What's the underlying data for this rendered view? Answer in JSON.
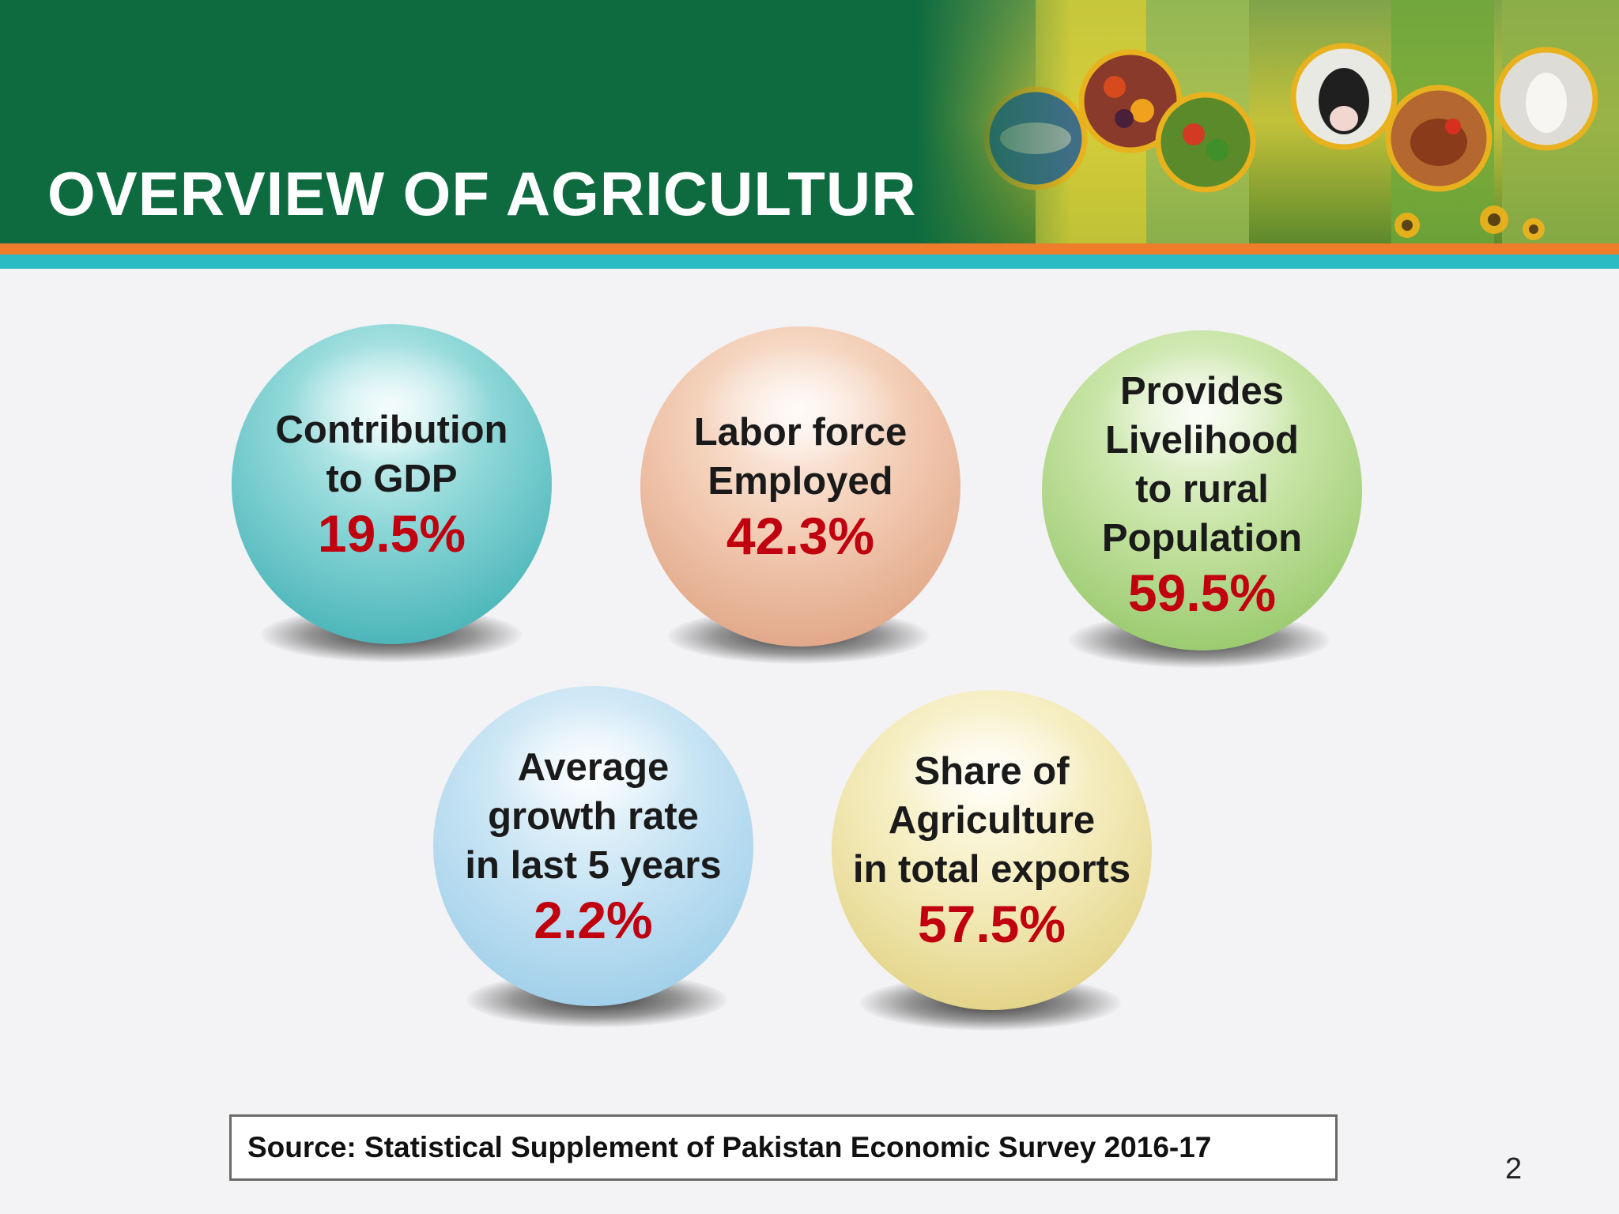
{
  "header": {
    "title": "OVERVIEW OF AGRICULTURE"
  },
  "colors": {
    "header_green": "#0e6b40",
    "stripe_orange": "#ee7d2b",
    "stripe_teal": "#2bbbc2",
    "value_red": "#c0000f"
  },
  "bubbles": [
    {
      "label": "Contribution\nto GDP",
      "value": "19.5%",
      "color": "teal"
    },
    {
      "label": "Labor force\nEmployed",
      "value": "42.3%",
      "color": "peach"
    },
    {
      "label": "Provides\nLivelihood\nto rural\nPopulation",
      "value": "59.5%",
      "color": "green"
    },
    {
      "label": "Average\ngrowth rate\nin last 5 years",
      "value": "2.2%",
      "color": "blue"
    },
    {
      "label": "Share of\nAgriculture\nin total exports",
      "value": "57.5%",
      "color": "yellow"
    }
  ],
  "source": {
    "text": "Source: Statistical Supplement of Pakistan Economic Survey 2016-17"
  },
  "page_number": "2"
}
